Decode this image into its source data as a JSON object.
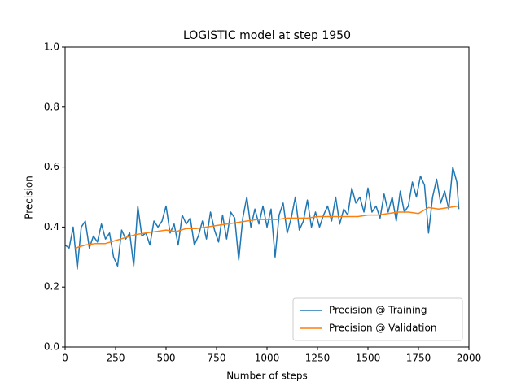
{
  "chart_data": {
    "type": "line",
    "title": "LOGISTIC model at step 1950",
    "xlabel": "Number of steps",
    "ylabel": "Precision",
    "xlim": [
      0,
      2000
    ],
    "xticks": [
      0,
      250,
      500,
      750,
      1000,
      1250,
      1500,
      1750,
      2000
    ],
    "ylim": [
      0,
      1
    ],
    "yticks": [
      {
        "value": 0,
        "label": "0.0"
      },
      {
        "value": 0.2,
        "label": "0.2"
      },
      {
        "value": 0.4,
        "label": "0.4"
      },
      {
        "value": 0.6,
        "label": "0.6"
      },
      {
        "value": 0.8,
        "label": "0.8"
      },
      {
        "value": 1,
        "label": "1.0"
      }
    ],
    "grid": false,
    "legend": "lower right",
    "series": [
      {
        "name": "Precision @ Training",
        "color": "#1f77b4",
        "x": [
          0,
          20,
          40,
          60,
          80,
          100,
          120,
          140,
          160,
          180,
          200,
          220,
          240,
          260,
          280,
          300,
          320,
          340,
          360,
          380,
          400,
          420,
          440,
          460,
          480,
          500,
          520,
          540,
          560,
          580,
          600,
          620,
          640,
          660,
          680,
          700,
          720,
          740,
          760,
          780,
          800,
          820,
          840,
          860,
          880,
          900,
          920,
          940,
          960,
          980,
          1000,
          1020,
          1040,
          1060,
          1080,
          1100,
          1120,
          1140,
          1160,
          1180,
          1200,
          1220,
          1240,
          1260,
          1280,
          1300,
          1320,
          1340,
          1360,
          1380,
          1400,
          1420,
          1440,
          1460,
          1480,
          1500,
          1520,
          1540,
          1560,
          1580,
          1600,
          1620,
          1640,
          1660,
          1680,
          1700,
          1720,
          1740,
          1760,
          1780,
          1800,
          1820,
          1840,
          1860,
          1880,
          1900,
          1920,
          1940,
          1950
        ],
        "values": [
          0.34,
          0.33,
          0.4,
          0.26,
          0.4,
          0.42,
          0.33,
          0.37,
          0.35,
          0.41,
          0.36,
          0.38,
          0.3,
          0.27,
          0.39,
          0.36,
          0.38,
          0.27,
          0.47,
          0.37,
          0.38,
          0.34,
          0.42,
          0.4,
          0.42,
          0.47,
          0.38,
          0.41,
          0.34,
          0.44,
          0.41,
          0.43,
          0.34,
          0.37,
          0.42,
          0.36,
          0.45,
          0.39,
          0.35,
          0.44,
          0.36,
          0.45,
          0.43,
          0.29,
          0.43,
          0.5,
          0.4,
          0.46,
          0.41,
          0.47,
          0.4,
          0.46,
          0.3,
          0.44,
          0.48,
          0.38,
          0.43,
          0.5,
          0.39,
          0.42,
          0.49,
          0.4,
          0.45,
          0.4,
          0.44,
          0.47,
          0.42,
          0.5,
          0.41,
          0.46,
          0.44,
          0.53,
          0.48,
          0.5,
          0.45,
          0.53,
          0.45,
          0.47,
          0.43,
          0.51,
          0.45,
          0.5,
          0.42,
          0.52,
          0.45,
          0.47,
          0.55,
          0.5,
          0.57,
          0.54,
          0.38,
          0.5,
          0.56,
          0.48,
          0.52,
          0.46,
          0.6,
          0.55,
          0.46
        ]
      },
      {
        "name": "Precision @ Validation",
        "color": "#ff7f0e",
        "x": [
          50,
          100,
          150,
          200,
          250,
          300,
          350,
          400,
          450,
          500,
          550,
          600,
          650,
          700,
          750,
          800,
          850,
          900,
          950,
          1000,
          1050,
          1100,
          1150,
          1200,
          1250,
          1300,
          1350,
          1400,
          1450,
          1500,
          1550,
          1600,
          1650,
          1700,
          1750,
          1800,
          1850,
          1900,
          1950
        ],
        "values": [
          0.33,
          0.34,
          0.345,
          0.345,
          0.355,
          0.365,
          0.375,
          0.38,
          0.385,
          0.39,
          0.385,
          0.395,
          0.395,
          0.4,
          0.405,
          0.41,
          0.415,
          0.42,
          0.425,
          0.425,
          0.425,
          0.43,
          0.43,
          0.43,
          0.435,
          0.435,
          0.435,
          0.435,
          0.435,
          0.44,
          0.44,
          0.445,
          0.45,
          0.45,
          0.445,
          0.465,
          0.46,
          0.465,
          0.47
        ]
      }
    ]
  }
}
